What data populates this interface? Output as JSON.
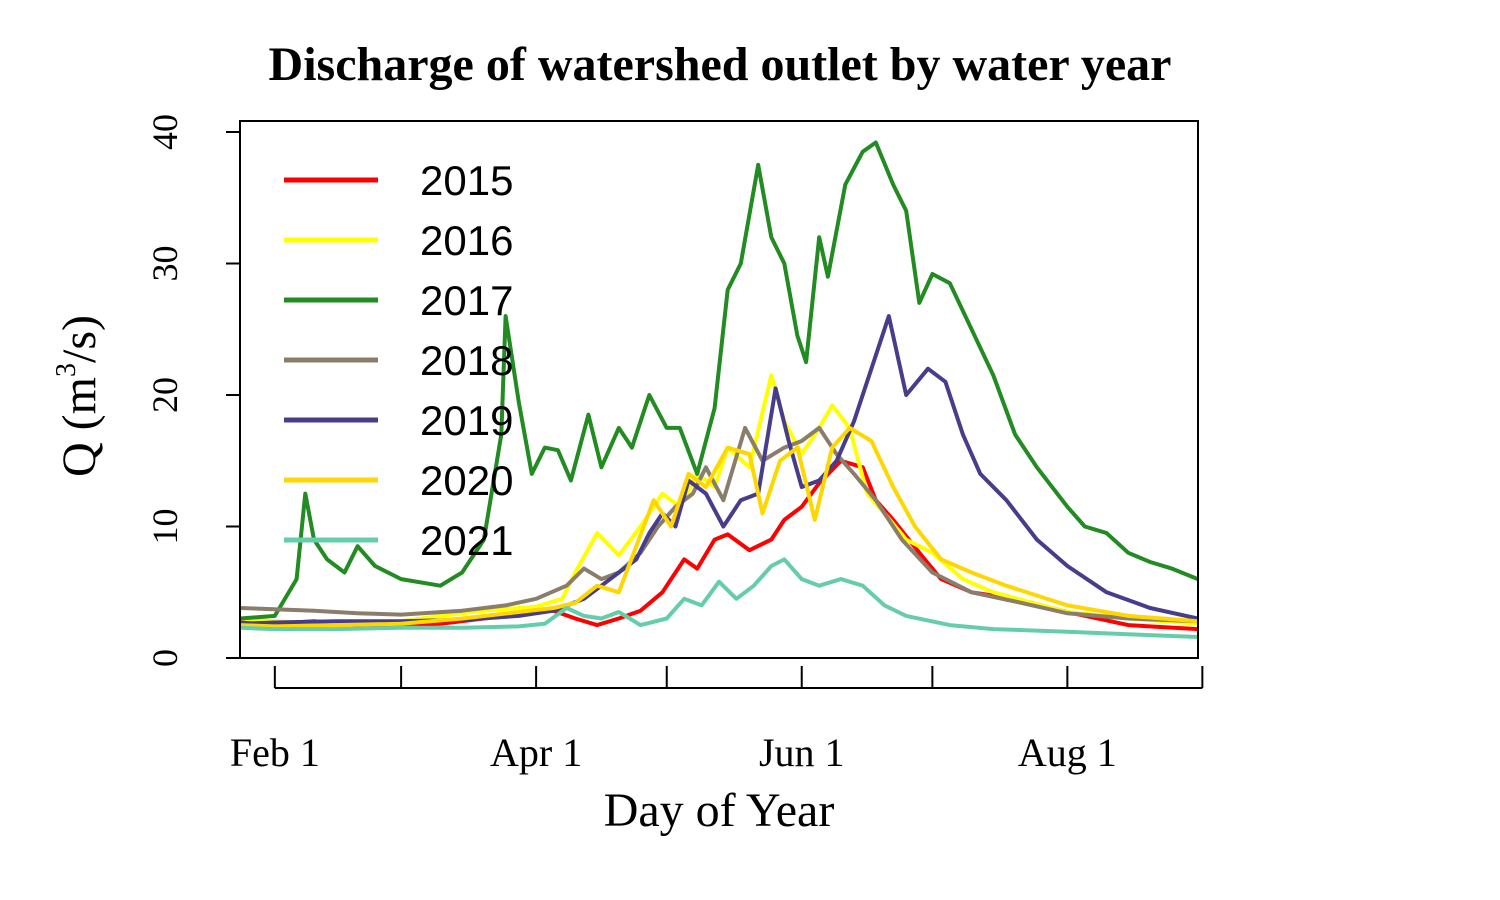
{
  "chart_data": {
    "type": "line",
    "title": "Discharge of watershed outlet by water year",
    "xlabel": "Day of Year",
    "ylabel": "Q",
    "ylabel_unit": "m",
    "ylabel_unit_sup": "3",
    "ylabel_unit_tail": "/s",
    "xlim": [
      "2020-01-24",
      "2020-08-31"
    ],
    "ylim": [
      0,
      40
    ],
    "x_ticks": [
      {
        "date": "2020-02-01",
        "label": "Feb 1"
      },
      {
        "date": "2020-03-01",
        "label": ""
      },
      {
        "date": "2020-04-01",
        "label": "Apr 1"
      },
      {
        "date": "2020-05-01",
        "label": ""
      },
      {
        "date": "2020-06-01",
        "label": "Jun 1"
      },
      {
        "date": "2020-07-01",
        "label": ""
      },
      {
        "date": "2020-08-01",
        "label": "Aug 1"
      },
      {
        "date": "2020-09-01",
        "label": ""
      }
    ],
    "y_ticks": [
      0,
      10,
      20,
      30,
      40
    ],
    "grid": false,
    "legend_position": "top-left",
    "series": [
      {
        "name": "2015",
        "color": "#ff0000",
        "points": [
          [
            "2020-01-24",
            2.8
          ],
          [
            "2020-02-01",
            2.6
          ],
          [
            "2020-02-10",
            2.8
          ],
          [
            "2020-02-20",
            2.5
          ],
          [
            "2020-03-01",
            2.5
          ],
          [
            "2020-03-10",
            2.6
          ],
          [
            "2020-03-20",
            3.0
          ],
          [
            "2020-03-28",
            3.4
          ],
          [
            "2020-04-05",
            3.6
          ],
          [
            "2020-04-10",
            3.0
          ],
          [
            "2020-04-15",
            2.5
          ],
          [
            "2020-04-20",
            3.0
          ],
          [
            "2020-04-25",
            3.6
          ],
          [
            "2020-04-30",
            5.0
          ],
          [
            "2020-05-05",
            7.5
          ],
          [
            "2020-05-08",
            6.8
          ],
          [
            "2020-05-12",
            9.0
          ],
          [
            "2020-05-15",
            9.4
          ],
          [
            "2020-05-20",
            8.2
          ],
          [
            "2020-05-25",
            9.0
          ],
          [
            "2020-05-28",
            10.5
          ],
          [
            "2020-06-01",
            11.5
          ],
          [
            "2020-06-05",
            13.3
          ],
          [
            "2020-06-10",
            15.0
          ],
          [
            "2020-06-15",
            14.5
          ],
          [
            "2020-06-18",
            12.0
          ],
          [
            "2020-06-22",
            10.5
          ],
          [
            "2020-06-28",
            8.0
          ],
          [
            "2020-07-03",
            6.0
          ],
          [
            "2020-07-10",
            5.0
          ],
          [
            "2020-07-20",
            4.5
          ],
          [
            "2020-08-01",
            3.5
          ],
          [
            "2020-08-15",
            2.5
          ],
          [
            "2020-08-31",
            2.2
          ]
        ]
      },
      {
        "name": "2016",
        "color": "#ffff00",
        "points": [
          [
            "2020-01-24",
            3.0
          ],
          [
            "2020-02-01",
            2.8
          ],
          [
            "2020-02-15",
            2.6
          ],
          [
            "2020-03-01",
            2.8
          ],
          [
            "2020-03-10",
            3.2
          ],
          [
            "2020-03-20",
            3.6
          ],
          [
            "2020-03-28",
            3.8
          ],
          [
            "2020-04-01",
            3.9
          ],
          [
            "2020-04-07",
            4.5
          ],
          [
            "2020-04-10",
            6.5
          ],
          [
            "2020-04-15",
            9.5
          ],
          [
            "2020-04-20",
            7.8
          ],
          [
            "2020-04-25",
            10.0
          ],
          [
            "2020-04-30",
            12.5
          ],
          [
            "2020-05-04",
            11.5
          ],
          [
            "2020-05-08",
            14.0
          ],
          [
            "2020-05-12",
            13.0
          ],
          [
            "2020-05-15",
            16.0
          ],
          [
            "2020-05-20",
            14.5
          ],
          [
            "2020-05-25",
            21.5
          ],
          [
            "2020-05-28",
            18.0
          ],
          [
            "2020-06-01",
            15.5
          ],
          [
            "2020-06-05",
            17.5
          ],
          [
            "2020-06-08",
            19.2
          ],
          [
            "2020-06-12",
            17.5
          ],
          [
            "2020-06-16",
            12.5
          ],
          [
            "2020-06-20",
            11.0
          ],
          [
            "2020-06-25",
            9.0
          ],
          [
            "2020-07-01",
            8.0
          ],
          [
            "2020-07-08",
            6.0
          ],
          [
            "2020-07-15",
            5.0
          ],
          [
            "2020-08-01",
            3.5
          ],
          [
            "2020-08-15",
            3.0
          ],
          [
            "2020-08-31",
            2.6
          ]
        ]
      },
      {
        "name": "2017",
        "color": "#228b22",
        "points": [
          [
            "2020-01-24",
            3.0
          ],
          [
            "2020-02-01",
            3.2
          ],
          [
            "2020-02-06",
            6.0
          ],
          [
            "2020-02-08",
            12.5
          ],
          [
            "2020-02-10",
            9.0
          ],
          [
            "2020-02-13",
            7.5
          ],
          [
            "2020-02-17",
            6.5
          ],
          [
            "2020-02-20",
            8.5
          ],
          [
            "2020-02-24",
            7.0
          ],
          [
            "2020-03-01",
            6.0
          ],
          [
            "2020-03-10",
            5.5
          ],
          [
            "2020-03-15",
            6.5
          ],
          [
            "2020-03-20",
            9.0
          ],
          [
            "2020-03-24",
            17.0
          ],
          [
            "2020-03-25",
            26.0
          ],
          [
            "2020-03-28",
            19.5
          ],
          [
            "2020-03-31",
            14.0
          ],
          [
            "2020-04-03",
            16.0
          ],
          [
            "2020-04-06",
            15.8
          ],
          [
            "2020-04-09",
            13.5
          ],
          [
            "2020-04-13",
            18.5
          ],
          [
            "2020-04-16",
            14.5
          ],
          [
            "2020-04-20",
            17.5
          ],
          [
            "2020-04-23",
            16.0
          ],
          [
            "2020-04-27",
            20.0
          ],
          [
            "2020-05-01",
            17.5
          ],
          [
            "2020-05-04",
            17.5
          ],
          [
            "2020-05-08",
            14.0
          ],
          [
            "2020-05-12",
            19.0
          ],
          [
            "2020-05-15",
            28.0
          ],
          [
            "2020-05-18",
            30.0
          ],
          [
            "2020-05-22",
            37.5
          ],
          [
            "2020-05-25",
            32.0
          ],
          [
            "2020-05-28",
            30.0
          ],
          [
            "2020-05-31",
            24.5
          ],
          [
            "2020-06-02",
            22.5
          ],
          [
            "2020-06-05",
            32.0
          ],
          [
            "2020-06-07",
            29.0
          ],
          [
            "2020-06-11",
            36.0
          ],
          [
            "2020-06-15",
            38.5
          ],
          [
            "2020-06-18",
            39.2
          ],
          [
            "2020-06-22",
            36.0
          ],
          [
            "2020-06-25",
            34.0
          ],
          [
            "2020-06-28",
            27.0
          ],
          [
            "2020-07-01",
            29.2
          ],
          [
            "2020-07-05",
            28.5
          ],
          [
            "2020-07-10",
            25.0
          ],
          [
            "2020-07-15",
            21.5
          ],
          [
            "2020-07-20",
            17.0
          ],
          [
            "2020-07-25",
            14.5
          ],
          [
            "2020-08-01",
            11.5
          ],
          [
            "2020-08-05",
            10.0
          ],
          [
            "2020-08-10",
            9.5
          ],
          [
            "2020-08-15",
            8.0
          ],
          [
            "2020-08-20",
            7.3
          ],
          [
            "2020-08-25",
            6.8
          ],
          [
            "2020-08-31",
            6.0
          ]
        ]
      },
      {
        "name": "2018",
        "color": "#8b7d6b",
        "points": [
          [
            "2020-01-24",
            3.8
          ],
          [
            "2020-02-01",
            3.7
          ],
          [
            "2020-02-10",
            3.6
          ],
          [
            "2020-02-20",
            3.4
          ],
          [
            "2020-03-01",
            3.3
          ],
          [
            "2020-03-15",
            3.6
          ],
          [
            "2020-03-25",
            4.0
          ],
          [
            "2020-04-01",
            4.5
          ],
          [
            "2020-04-08",
            5.5
          ],
          [
            "2020-04-12",
            6.8
          ],
          [
            "2020-04-16",
            6.0
          ],
          [
            "2020-04-20",
            6.5
          ],
          [
            "2020-04-25",
            8.0
          ],
          [
            "2020-04-29",
            10.0
          ],
          [
            "2020-05-03",
            11.5
          ],
          [
            "2020-05-07",
            12.5
          ],
          [
            "2020-05-10",
            14.5
          ],
          [
            "2020-05-14",
            12.0
          ],
          [
            "2020-05-19",
            17.5
          ],
          [
            "2020-05-23",
            15.0
          ],
          [
            "2020-05-28",
            16.0
          ],
          [
            "2020-06-01",
            16.5
          ],
          [
            "2020-06-05",
            17.5
          ],
          [
            "2020-06-09",
            15.5
          ],
          [
            "2020-06-13",
            14.0
          ],
          [
            "2020-06-18",
            12.0
          ],
          [
            "2020-06-24",
            9.0
          ],
          [
            "2020-07-01",
            6.5
          ],
          [
            "2020-07-10",
            5.0
          ],
          [
            "2020-07-20",
            4.3
          ],
          [
            "2020-08-01",
            3.4
          ],
          [
            "2020-08-15",
            3.0
          ],
          [
            "2020-08-31",
            2.8
          ]
        ]
      },
      {
        "name": "2019",
        "color": "#483d8b",
        "points": [
          [
            "2020-01-24",
            2.6
          ],
          [
            "2020-02-01",
            2.7
          ],
          [
            "2020-02-15",
            2.8
          ],
          [
            "2020-03-01",
            2.8
          ],
          [
            "2020-03-15",
            2.9
          ],
          [
            "2020-03-28",
            3.2
          ],
          [
            "2020-04-05",
            3.6
          ],
          [
            "2020-04-12",
            4.5
          ],
          [
            "2020-04-16",
            5.5
          ],
          [
            "2020-04-20",
            6.5
          ],
          [
            "2020-04-24",
            7.5
          ],
          [
            "2020-04-27",
            9.5
          ],
          [
            "2020-04-30",
            11.0
          ],
          [
            "2020-05-03",
            10.0
          ],
          [
            "2020-05-06",
            13.5
          ],
          [
            "2020-05-10",
            12.5
          ],
          [
            "2020-05-14",
            10.0
          ],
          [
            "2020-05-18",
            12.0
          ],
          [
            "2020-05-22",
            12.5
          ],
          [
            "2020-05-26",
            20.5
          ],
          [
            "2020-05-29",
            16.5
          ],
          [
            "2020-06-01",
            13.0
          ],
          [
            "2020-06-05",
            13.5
          ],
          [
            "2020-06-09",
            15.0
          ],
          [
            "2020-06-13",
            18.0
          ],
          [
            "2020-06-17",
            22.0
          ],
          [
            "2020-06-21",
            26.0
          ],
          [
            "2020-06-25",
            20.0
          ],
          [
            "2020-06-30",
            22.0
          ],
          [
            "2020-07-04",
            21.0
          ],
          [
            "2020-07-08",
            17.0
          ],
          [
            "2020-07-12",
            14.0
          ],
          [
            "2020-07-18",
            12.0
          ],
          [
            "2020-07-25",
            9.0
          ],
          [
            "2020-08-01",
            7.0
          ],
          [
            "2020-08-10",
            5.0
          ],
          [
            "2020-08-20",
            3.8
          ],
          [
            "2020-08-31",
            3.0
          ]
        ]
      },
      {
        "name": "2020",
        "color": "#ffd700",
        "points": [
          [
            "2020-01-24",
            2.5
          ],
          [
            "2020-02-01",
            2.4
          ],
          [
            "2020-02-15",
            2.5
          ],
          [
            "2020-03-01",
            2.6
          ],
          [
            "2020-03-15",
            3.0
          ],
          [
            "2020-03-28",
            3.5
          ],
          [
            "2020-04-05",
            3.8
          ],
          [
            "2020-04-10",
            4.2
          ],
          [
            "2020-04-15",
            5.5
          ],
          [
            "2020-04-20",
            5.0
          ],
          [
            "2020-04-24",
            8.5
          ],
          [
            "2020-04-28",
            12.0
          ],
          [
            "2020-05-02",
            10.0
          ],
          [
            "2020-05-06",
            14.0
          ],
          [
            "2020-05-10",
            13.0
          ],
          [
            "2020-05-15",
            16.0
          ],
          [
            "2020-05-20",
            15.5
          ],
          [
            "2020-05-23",
            11.0
          ],
          [
            "2020-05-27",
            15.0
          ],
          [
            "2020-05-31",
            16.0
          ],
          [
            "2020-06-04",
            10.5
          ],
          [
            "2020-06-08",
            16.0
          ],
          [
            "2020-06-12",
            17.5
          ],
          [
            "2020-06-17",
            16.5
          ],
          [
            "2020-06-22",
            13.0
          ],
          [
            "2020-06-27",
            10.0
          ],
          [
            "2020-07-03",
            7.5
          ],
          [
            "2020-07-10",
            6.5
          ],
          [
            "2020-07-18",
            5.5
          ],
          [
            "2020-08-01",
            4.0
          ],
          [
            "2020-08-15",
            3.2
          ],
          [
            "2020-08-31",
            2.8
          ]
        ]
      },
      {
        "name": "2021",
        "color": "#66cdaa",
        "points": [
          [
            "2020-01-24",
            2.3
          ],
          [
            "2020-02-01",
            2.2
          ],
          [
            "2020-02-15",
            2.2
          ],
          [
            "2020-03-01",
            2.3
          ],
          [
            "2020-03-15",
            2.3
          ],
          [
            "2020-03-28",
            2.4
          ],
          [
            "2020-04-03",
            2.6
          ],
          [
            "2020-04-08",
            3.8
          ],
          [
            "2020-04-12",
            3.2
          ],
          [
            "2020-04-16",
            3.0
          ],
          [
            "2020-04-20",
            3.5
          ],
          [
            "2020-04-25",
            2.5
          ],
          [
            "2020-05-01",
            3.0
          ],
          [
            "2020-05-05",
            4.5
          ],
          [
            "2020-05-09",
            4.0
          ],
          [
            "2020-05-13",
            5.8
          ],
          [
            "2020-05-17",
            4.5
          ],
          [
            "2020-05-21",
            5.5
          ],
          [
            "2020-05-25",
            7.0
          ],
          [
            "2020-05-28",
            7.5
          ],
          [
            "2020-06-01",
            6.0
          ],
          [
            "2020-06-05",
            5.5
          ],
          [
            "2020-06-10",
            6.0
          ],
          [
            "2020-06-15",
            5.5
          ],
          [
            "2020-06-20",
            4.0
          ],
          [
            "2020-06-25",
            3.2
          ],
          [
            "2020-07-05",
            2.5
          ],
          [
            "2020-07-15",
            2.2
          ],
          [
            "2020-08-01",
            2.0
          ],
          [
            "2020-08-15",
            1.8
          ],
          [
            "2020-08-31",
            1.6
          ]
        ]
      }
    ]
  }
}
